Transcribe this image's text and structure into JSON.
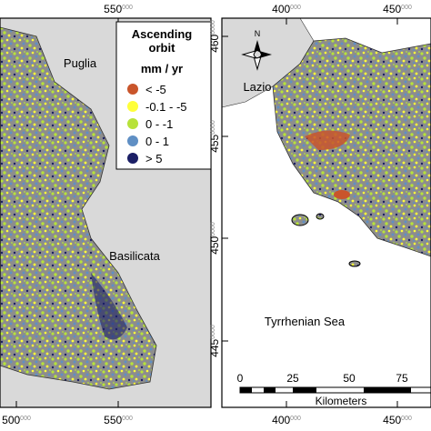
{
  "left_panel": {
    "x_ticks_top": [
      {
        "major": "550",
        "minor": "000"
      }
    ],
    "x_ticks_bottom": [
      {
        "major": "500",
        "minor": "000"
      },
      {
        "major": "550",
        "minor": "000"
      }
    ],
    "region_labels": [
      "Puglia",
      "Basilicata"
    ]
  },
  "right_panel": {
    "x_ticks_top": [
      {
        "major": "400",
        "minor": "000"
      },
      {
        "major": "450",
        "minor": "000"
      }
    ],
    "x_ticks_bottom": [
      {
        "major": "400",
        "minor": "000"
      },
      {
        "major": "450",
        "minor": "000"
      }
    ],
    "y_ticks": [
      {
        "major": "460",
        "minor": "0000"
      },
      {
        "major": "455",
        "minor": "0000"
      },
      {
        "major": "450",
        "minor": "0000"
      },
      {
        "major": "445",
        "minor": "0000"
      }
    ],
    "region_labels": [
      "Lazio",
      "Tyrrhenian Sea"
    ],
    "north_arrow": "N",
    "scale_bar": {
      "ticks": [
        "0",
        "25",
        "50",
        "75"
      ],
      "unit": "Kilometers"
    }
  },
  "legend": {
    "title": [
      "Ascending",
      "orbit"
    ],
    "unit": "mm / yr",
    "items": [
      {
        "label": "< -5",
        "color": "#c9552b"
      },
      {
        "label": "-0.1 - -5",
        "color": "#ffff3a"
      },
      {
        "label": "0 - -1",
        "color": "#b7e23a"
      },
      {
        "label": "0 - 1",
        "color": "#5f8fc4"
      },
      {
        "label": "> 5",
        "color": "#1b1f66"
      }
    ]
  }
}
